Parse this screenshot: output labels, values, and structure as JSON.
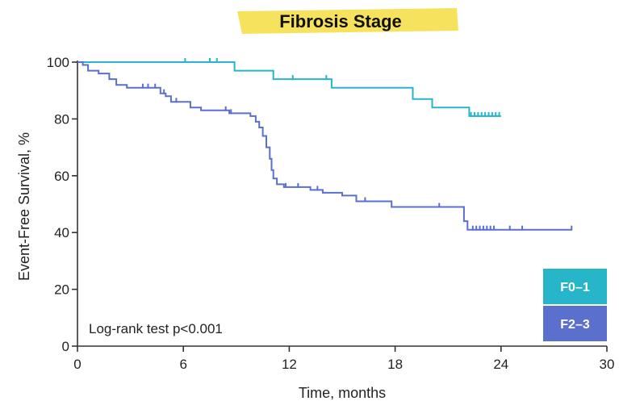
{
  "chart_data": {
    "type": "line",
    "title": "Fibrosis Stage",
    "xlabel": "Time, months",
    "ylabel": "Event-Free Survival, %",
    "xlim": [
      0,
      30
    ],
    "ylim": [
      0,
      100
    ],
    "xticks": [
      0,
      6,
      12,
      18,
      24,
      30
    ],
    "yticks": [
      0,
      20,
      40,
      60,
      80,
      100
    ],
    "grid": false,
    "legend_position": "bottom-right",
    "annotation": "Log-rank test p<0.001",
    "title_highlight_color": "#f7e25e",
    "series": [
      {
        "name": "F0–1",
        "color": "#27b5c9",
        "steps": [
          [
            0,
            100
          ],
          [
            8.9,
            100
          ],
          [
            8.9,
            97
          ],
          [
            11.1,
            97
          ],
          [
            11.1,
            94
          ],
          [
            14.4,
            94
          ],
          [
            14.4,
            91
          ],
          [
            19,
            91
          ],
          [
            19,
            87
          ],
          [
            20.1,
            87
          ],
          [
            20.1,
            84
          ],
          [
            22.2,
            84
          ],
          [
            22.2,
            81
          ],
          [
            24,
            81
          ]
        ],
        "censor_x": [
          6.1,
          7.5,
          7.9,
          12.2,
          14.1,
          22.3,
          22.5,
          22.7,
          22.9,
          23.1,
          23.3,
          23.5,
          23.7,
          23.9
        ]
      },
      {
        "name": "F2–3",
        "color": "#5b6fcd",
        "steps": [
          [
            0,
            100
          ],
          [
            0.3,
            100
          ],
          [
            0.3,
            99
          ],
          [
            0.6,
            99
          ],
          [
            0.6,
            97
          ],
          [
            1.2,
            97
          ],
          [
            1.2,
            96
          ],
          [
            1.8,
            96
          ],
          [
            1.8,
            94
          ],
          [
            2.2,
            94
          ],
          [
            2.2,
            92
          ],
          [
            2.8,
            92
          ],
          [
            2.8,
            91
          ],
          [
            4.7,
            91
          ],
          [
            4.7,
            89
          ],
          [
            5,
            89
          ],
          [
            5,
            88
          ],
          [
            5.3,
            88
          ],
          [
            5.3,
            86
          ],
          [
            6.4,
            86
          ],
          [
            6.4,
            84
          ],
          [
            7,
            84
          ],
          [
            7,
            83
          ],
          [
            8.6,
            83
          ],
          [
            8.6,
            82
          ],
          [
            9.8,
            82
          ],
          [
            9.8,
            81
          ],
          [
            10.1,
            81
          ],
          [
            10.1,
            79
          ],
          [
            10.3,
            79
          ],
          [
            10.3,
            77
          ],
          [
            10.5,
            77
          ],
          [
            10.5,
            74
          ],
          [
            10.7,
            74
          ],
          [
            10.7,
            70
          ],
          [
            10.9,
            70
          ],
          [
            10.9,
            66
          ],
          [
            11,
            66
          ],
          [
            11,
            62
          ],
          [
            11.1,
            62
          ],
          [
            11.1,
            59
          ],
          [
            11.3,
            59
          ],
          [
            11.3,
            57
          ],
          [
            11.7,
            57
          ],
          [
            11.7,
            56
          ],
          [
            13.2,
            56
          ],
          [
            13.2,
            55
          ],
          [
            13.9,
            55
          ],
          [
            13.9,
            54
          ],
          [
            15,
            54
          ],
          [
            15,
            53
          ],
          [
            15.8,
            53
          ],
          [
            15.8,
            51
          ],
          [
            17.8,
            51
          ],
          [
            17.8,
            49
          ],
          [
            21.9,
            49
          ],
          [
            21.9,
            44
          ],
          [
            22.1,
            44
          ],
          [
            22.1,
            41
          ],
          [
            28,
            41
          ]
        ],
        "censor_x": [
          3.7,
          4,
          4.4,
          4.9,
          5.6,
          8.4,
          8.7,
          11.8,
          12.5,
          13.6,
          16.3,
          20.5,
          22.4,
          22.6,
          22.8,
          23,
          23.2,
          23.4,
          23.6,
          24.5,
          25.2,
          28
        ]
      }
    ]
  }
}
